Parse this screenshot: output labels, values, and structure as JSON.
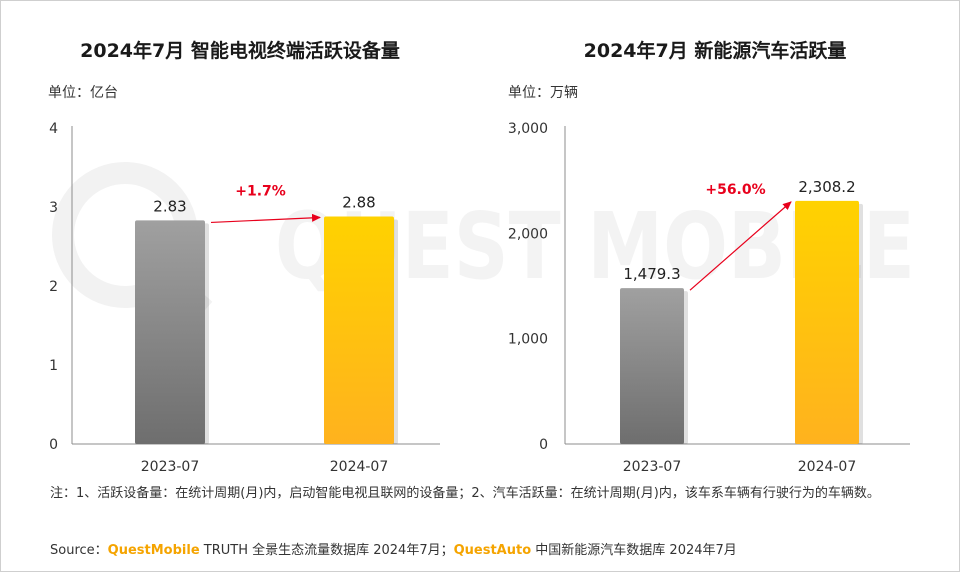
{
  "watermark": "QUEST MOBILE",
  "colors": {
    "bar_previous": [
      "#a0a0a0",
      "#6e6e6e"
    ],
    "bar_current": [
      "#ffd200",
      "#ffb21e"
    ],
    "growth_arrow": "#e8001c",
    "axis": "#8c8c8c"
  },
  "chart_data": [
    {
      "type": "bar",
      "title": "2024年7月 智能电视终端活跃设备量",
      "unit": "单位：亿台",
      "categories": [
        "2023-07",
        "2024-07"
      ],
      "values": [
        2.83,
        2.88
      ],
      "value_labels": [
        "2.83",
        "2.88"
      ],
      "ylim": [
        0,
        4
      ],
      "yticks": [
        "0",
        "1",
        "2",
        "3",
        "4"
      ],
      "ytick_values": [
        0,
        1,
        2,
        3,
        4
      ],
      "growth": "+1.7%",
      "grid": false
    },
    {
      "type": "bar",
      "title": "2024年7月 新能源汽车活跃量",
      "unit": "单位：万辆",
      "categories": [
        "2023-07",
        "2024-07"
      ],
      "values": [
        1479.3,
        2308.2
      ],
      "value_labels": [
        "1,479.3",
        "2,308.2"
      ],
      "ylim": [
        0,
        3000
      ],
      "yticks": [
        "0",
        "1,000",
        "2,000",
        "3,000"
      ],
      "ytick_values": [
        0,
        1000,
        2000,
        3000
      ],
      "growth": "+56.0%",
      "grid": false
    }
  ],
  "note": "注：1、活跃设备量：在统计周期(月)内，启动智能电视且联网的设备量；2、汽车活跃量：在统计周期(月)内，该车系车辆有行驶行为的车辆数。",
  "source": {
    "prefix": "Source：",
    "brand1": "QuestMobile",
    "text1": " TRUTH 全景生态流量数据库 2024年7月；",
    "brand2": "QuestAuto",
    "text2": " 中国新能源汽车数据库 2024年7月"
  }
}
